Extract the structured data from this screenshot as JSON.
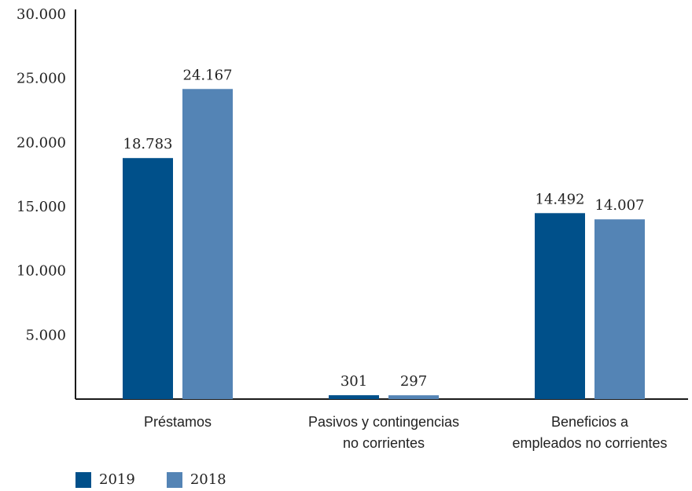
{
  "chart_data": {
    "type": "bar",
    "categories": [
      [
        "Préstamos"
      ],
      [
        "Pasivos y contingencias",
        "no corrientes"
      ],
      [
        "Beneficios a",
        "empleados no corrientes"
      ]
    ],
    "series": [
      {
        "name": "2019",
        "color": "#00508a",
        "values": [
          18783,
          301,
          14492
        ],
        "labels": [
          "18.783",
          "301",
          "14.492"
        ]
      },
      {
        "name": "2018",
        "color": "#5484b5",
        "values": [
          24167,
          297,
          14007
        ],
        "labels": [
          "24.167",
          "297",
          "14.007"
        ]
      }
    ],
    "ylim": [
      0,
      30000
    ],
    "yticks": [
      5000,
      10000,
      15000,
      20000,
      25000,
      30000
    ],
    "ytick_labels": [
      "5.000",
      "10.000",
      "15.000",
      "20.000",
      "25.000",
      "30.000"
    ],
    "grid": false,
    "legend_position": "bottom-left"
  }
}
